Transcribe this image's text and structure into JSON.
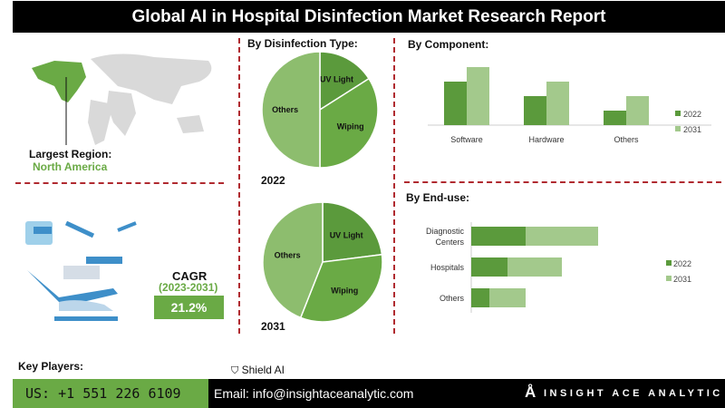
{
  "title": "Global AI in Hospital Disinfection Market Research Report",
  "region": {
    "label": "Largest Region:",
    "value": "North America"
  },
  "cagr": {
    "label": "CAGR",
    "period": "(2023-2031)",
    "value": "21.2%"
  },
  "key_players": {
    "label": "Key Players:",
    "players": [
      "Shield AI"
    ]
  },
  "footer": {
    "phone": "US: +1 551 226 6109",
    "email": "Email: info@insightaceanalytic.com",
    "brand": "INSIGHT ACE ANALYTIC"
  },
  "colors": {
    "dark": "#5b9a3c",
    "mid": "#6aaa45",
    "light": "#a3c98c",
    "pie_light": "#8dbd6e"
  },
  "chart_data": [
    {
      "type": "pie",
      "title": "By  Disinfection Type:",
      "year": "2022",
      "labels": [
        "UV Light",
        "Wiping",
        "Others"
      ],
      "values": [
        16,
        34,
        50
      ]
    },
    {
      "type": "pie",
      "title": "",
      "year": "2031",
      "labels": [
        "UV Light",
        "Wiping",
        "Others"
      ],
      "values": [
        23,
        33,
        44
      ]
    },
    {
      "type": "bar",
      "title": "By Component:",
      "categories": [
        "Software",
        "Hardware",
        "Others"
      ],
      "series": [
        {
          "name": "2022",
          "values": [
            3,
            2,
            1
          ]
        },
        {
          "name": "2031",
          "values": [
            4,
            3,
            2
          ]
        }
      ],
      "legend": "right"
    },
    {
      "type": "bar",
      "orientation": "horizontal",
      "stacked": true,
      "title": "By End-use:",
      "categories": [
        "Diagnostic Centers",
        "Hospitals",
        "Others"
      ],
      "series": [
        {
          "name": "2022",
          "values": [
            3,
            2,
            1
          ]
        },
        {
          "name": "2031",
          "values": [
            4,
            3,
            2
          ]
        }
      ],
      "legend": "right"
    }
  ]
}
